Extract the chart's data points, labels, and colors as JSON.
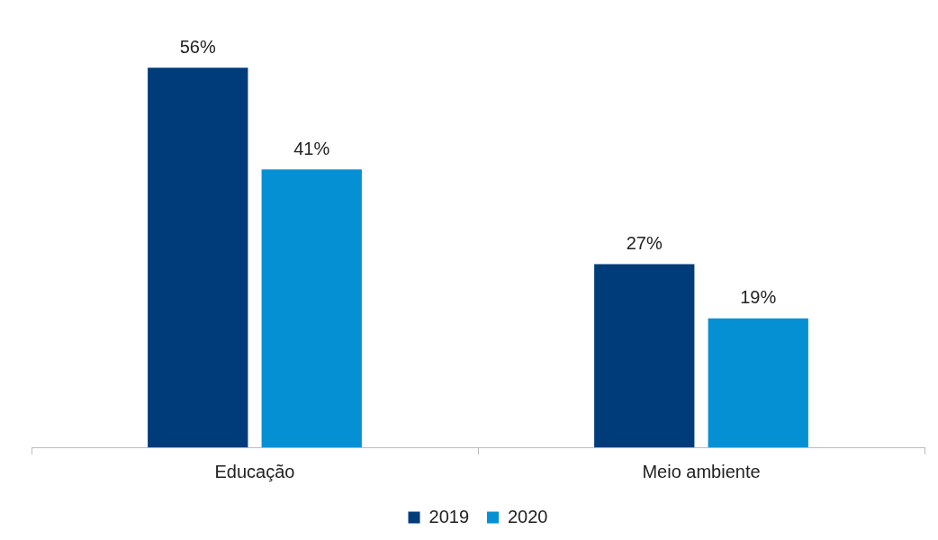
{
  "chart_data": {
    "type": "bar",
    "categories": [
      "Educação",
      "Meio ambiente"
    ],
    "series": [
      {
        "name": "2019",
        "color": "#003b7a",
        "values": [
          56,
          27
        ],
        "value_labels": [
          "56%",
          "27%"
        ]
      },
      {
        "name": "2020",
        "color": "#0590d3",
        "values": [
          41,
          19
        ],
        "value_labels": [
          "41%",
          "19%"
        ]
      }
    ],
    "legend": "bottom"
  }
}
